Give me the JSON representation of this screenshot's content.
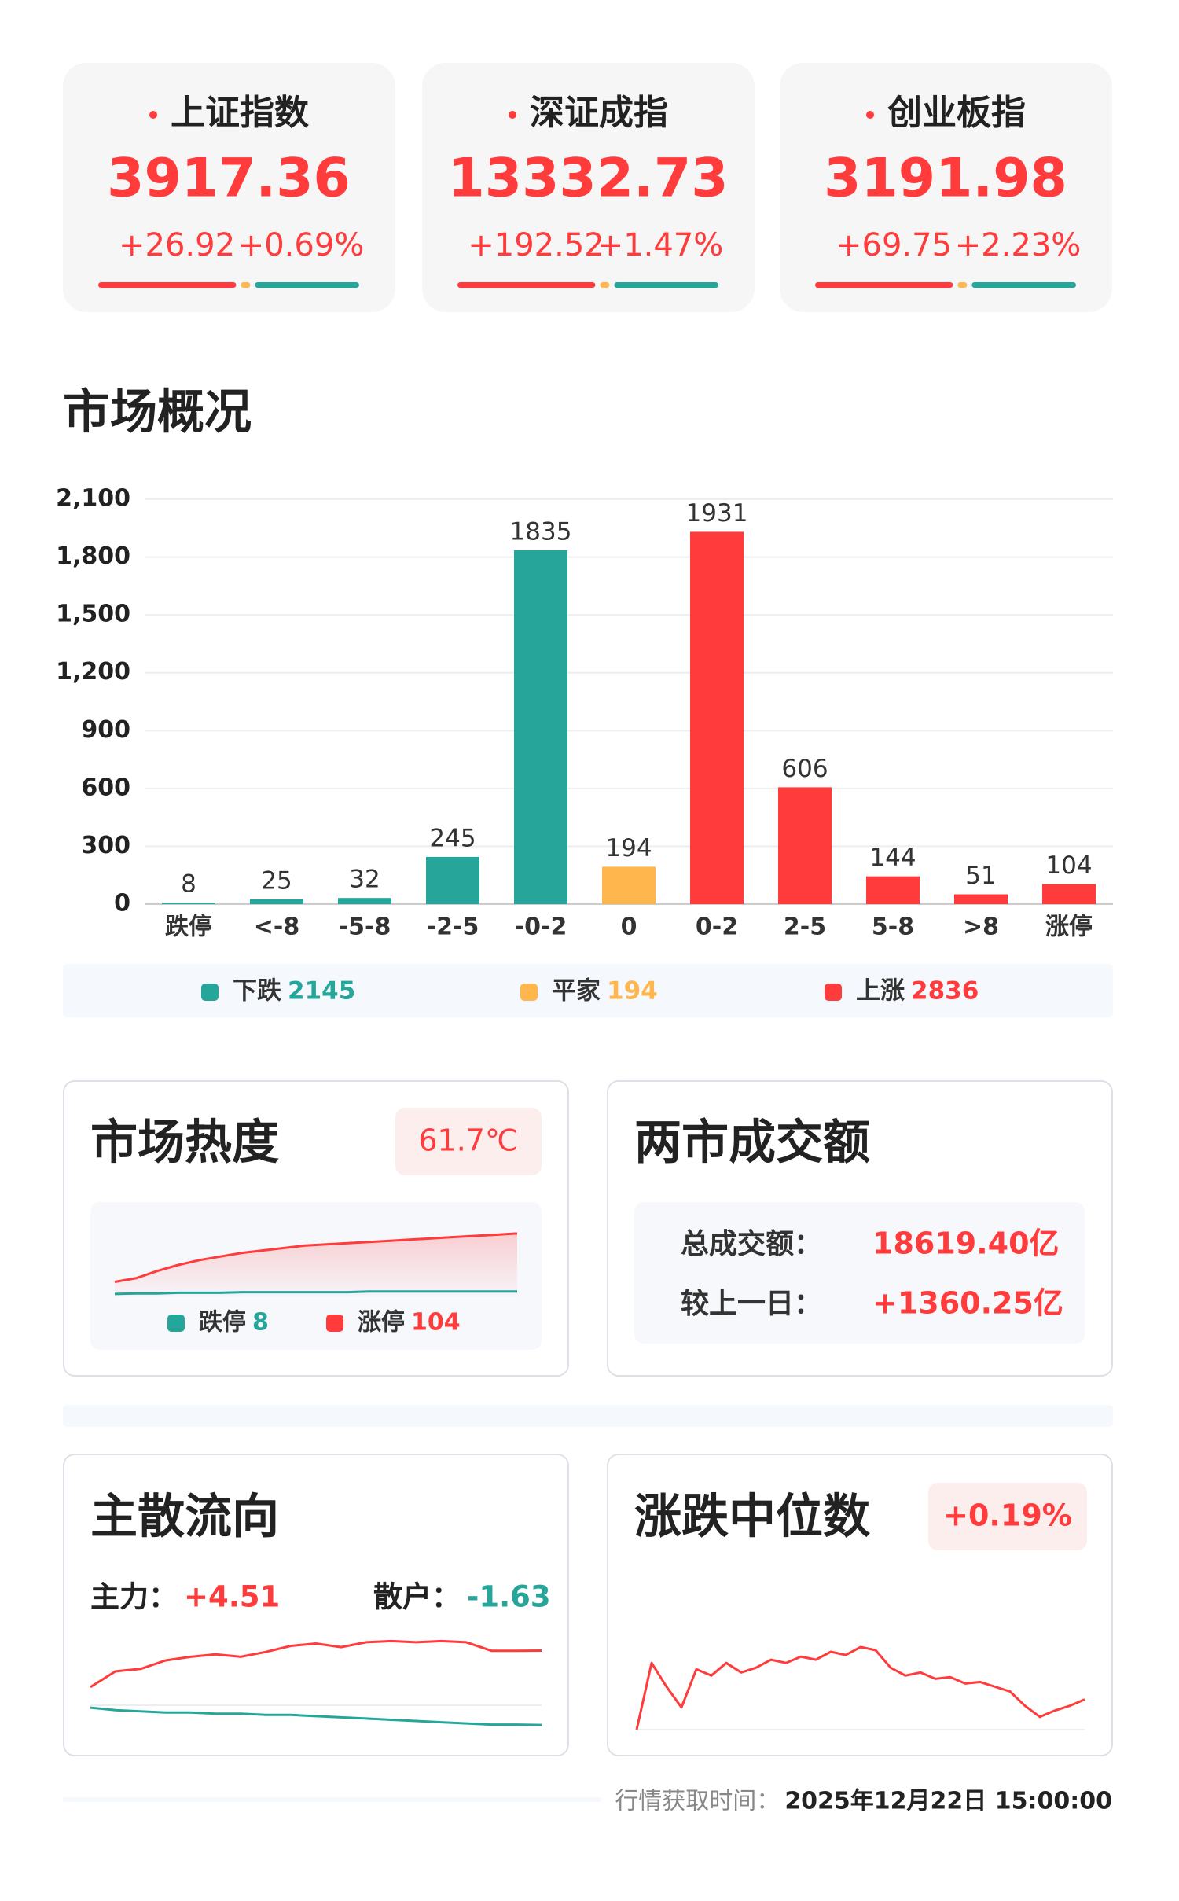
{
  "index_cards": [
    {
      "name": "上证指数",
      "value": "3917.36",
      "change": "+26.92",
      "pct": "+0.69%"
    },
    {
      "name": "深证成指",
      "value": "13332.73",
      "change": "+192.52",
      "pct": "+1.47%"
    },
    {
      "name": "创业板指",
      "value": "3191.98",
      "change": "+69.75",
      "pct": "+2.23%"
    }
  ],
  "chart_data": {
    "type": "bar",
    "title": "市场概况",
    "categories": [
      "跌停",
      "<-8",
      "-5-8",
      "-2-5",
      "-0-2",
      "0",
      "0-2",
      "2-5",
      "5-8",
      ">8",
      "涨停"
    ],
    "values": [
      8,
      25,
      32,
      245,
      1835,
      194,
      1931,
      606,
      144,
      51,
      104
    ],
    "colors": [
      "#26a69a",
      "#26a69a",
      "#26a69a",
      "#26a69a",
      "#26a69a",
      "#ffb64d",
      "#ff3b3b",
      "#ff3b3b",
      "#ff3b3b",
      "#ff3b3b",
      "#ff3b3b"
    ],
    "ylim": [
      0,
      2100
    ],
    "yticks": [
      0,
      300,
      600,
      900,
      {
        "value": 1200,
        "label": "1,200"
      },
      {
        "value": 1500,
        "label": "1,500"
      },
      {
        "value": 1800,
        "label": "1,800"
      },
      {
        "value": 2100,
        "label": "2,100"
      }
    ],
    "grid": true,
    "legend": [
      {
        "name": "下跌",
        "value": 2145,
        "color": "#26a69a"
      },
      {
        "name": "平家",
        "value": 194,
        "color": "#ffb64d"
      },
      {
        "name": "上涨",
        "value": 2836,
        "color": "#ff3b3b"
      }
    ]
  },
  "heat": {
    "title": "市场热度",
    "badge": "61.7℃",
    "series": [
      {
        "name": "跌停",
        "value": 8,
        "color": "#26a69a",
        "values": [
          4,
          5,
          5,
          6,
          6,
          6,
          7,
          7,
          7,
          7,
          7,
          7,
          8,
          8,
          8,
          8,
          8,
          8,
          8,
          8
        ]
      },
      {
        "name": "涨停",
        "value": 104,
        "color": "#ff3b3b",
        "values": [
          24,
          30,
          42,
          52,
          60,
          66,
          72,
          76,
          80,
          84,
          86,
          88,
          90,
          92,
          94,
          96,
          98,
          100,
          102,
          104
        ]
      }
    ]
  },
  "turnover": {
    "title": "两市成交额",
    "rows": [
      {
        "label": "总成交额：",
        "value": "18619.40亿"
      },
      {
        "label": "较上一日：",
        "value": "+1360.25亿"
      }
    ]
  },
  "flow": {
    "title": "主散流向",
    "series": [
      {
        "name": "主力：",
        "value": "+4.51",
        "color": "#ff3b3b",
        "values": [
          1.5,
          2.8,
          3.0,
          3.7,
          4.0,
          4.2,
          4.0,
          4.4,
          4.9,
          5.1,
          4.8,
          5.2,
          5.3,
          5.2,
          5.3,
          5.2,
          4.5,
          4.5,
          4.51
        ]
      },
      {
        "name": "散户：",
        "value": "-1.63",
        "color": "#26a69a",
        "values": [
          -0.2,
          -0.4,
          -0.5,
          -0.6,
          -0.6,
          -0.7,
          -0.7,
          -0.8,
          -0.8,
          -0.9,
          -1.0,
          -1.1,
          -1.2,
          -1.3,
          -1.4,
          -1.5,
          -1.6,
          -1.6,
          -1.63
        ]
      }
    ]
  },
  "median": {
    "title": "涨跌中位数",
    "badge": "+0.19%",
    "color": "#ff3b3b",
    "values": [
      0,
      0.42,
      0.27,
      0.14,
      0.38,
      0.34,
      0.42,
      0.36,
      0.39,
      0.44,
      0.42,
      0.46,
      0.44,
      0.49,
      0.47,
      0.52,
      0.5,
      0.39,
      0.34,
      0.36,
      0.32,
      0.33,
      0.29,
      0.3,
      0.27,
      0.24,
      0.15,
      0.08,
      0.12,
      0.15,
      0.19
    ]
  },
  "footer": {
    "label": "行情获取时间：",
    "time": "2025年12月22日 15:00:00"
  }
}
